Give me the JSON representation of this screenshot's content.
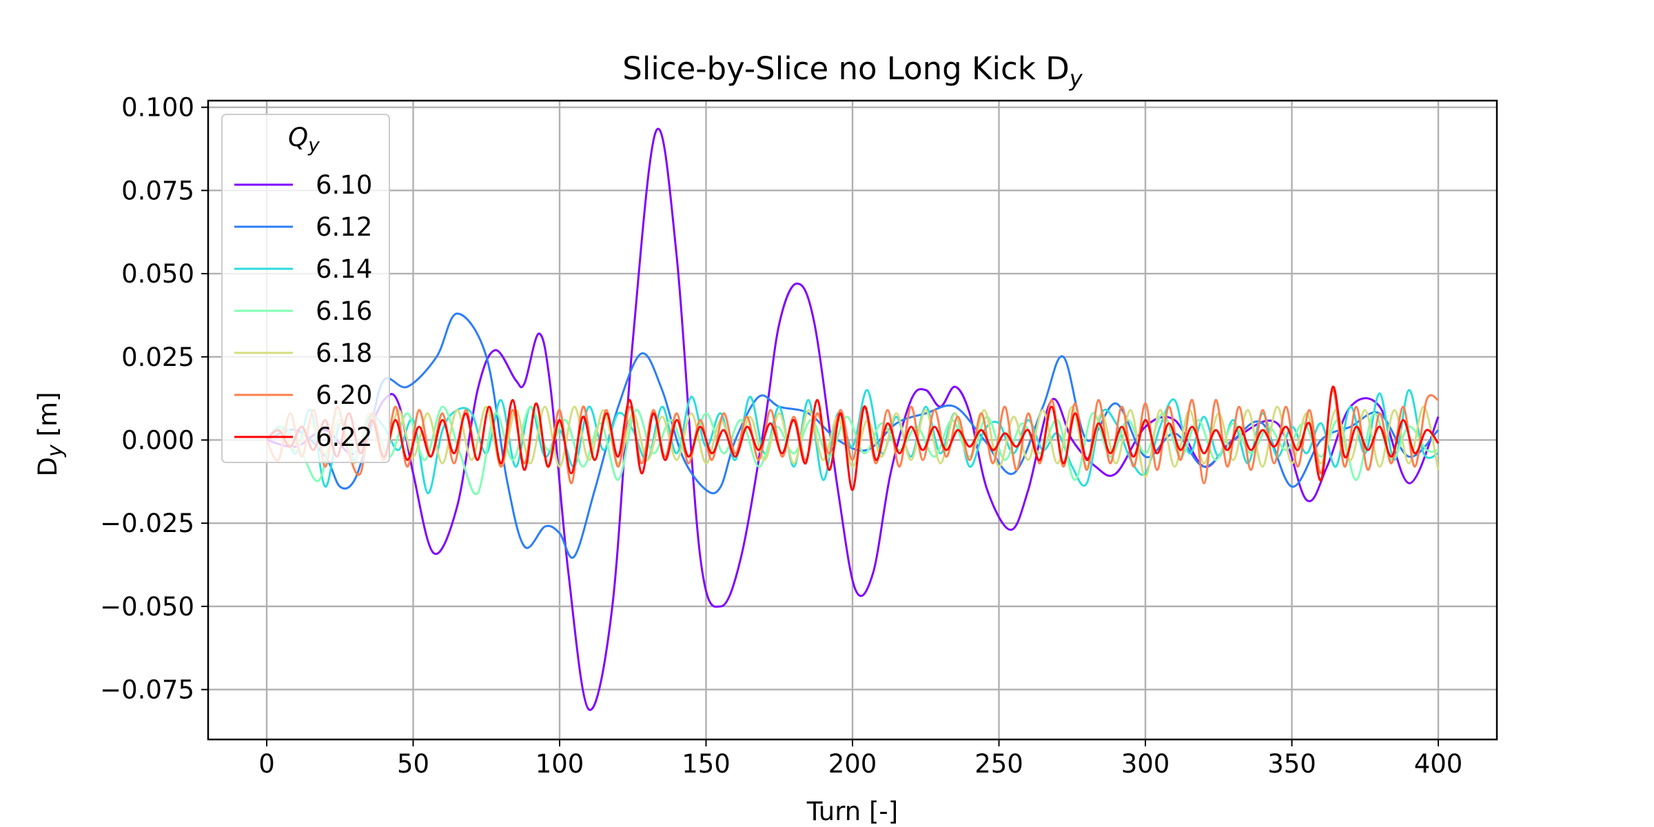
{
  "chart_data": {
    "type": "line",
    "title": "Slice-by-Slice no Long Kick D",
    "title_sub": "y",
    "xlabel": "Turn [-]",
    "ylabel": "D",
    "ylabel_sub": "y",
    "ylabel_unit": " [m]",
    "xlim": [
      -20,
      420
    ],
    "ylim": [
      -0.09,
      0.102
    ],
    "xticks": [
      0,
      50,
      100,
      150,
      200,
      250,
      300,
      350,
      400
    ],
    "xtick_labels": [
      "0",
      "50",
      "100",
      "150",
      "200",
      "250",
      "300",
      "350",
      "400"
    ],
    "yticks": [
      -0.075,
      -0.05,
      -0.025,
      0.0,
      0.025,
      0.05,
      0.075,
      0.1
    ],
    "ytick_labels": [
      "−0.075",
      "−0.050",
      "−0.025",
      "0.000",
      "0.025",
      "0.050",
      "0.075",
      "0.100"
    ],
    "grid": true,
    "legend": {
      "title": "Q",
      "title_sub": "y",
      "placement": "upper-left"
    },
    "series": [
      {
        "name": "6.10",
        "color": "#8000ff",
        "x": [
          0,
          10,
          20,
          30,
          40,
          45,
          50,
          57,
          65,
          72,
          78,
          85,
          88,
          93,
          97,
          103,
          110,
          118,
          125,
          133,
          140,
          148,
          155,
          162,
          170,
          175,
          181,
          187,
          195,
          201,
          207,
          213,
          220,
          225,
          230,
          235,
          240,
          246,
          254,
          260,
          268,
          275,
          283,
          290,
          300,
          310,
          320,
          330,
          345,
          355,
          362,
          370,
          380,
          390,
          400
        ],
        "y": [
          0.0,
          -0.002,
          0.003,
          -0.004,
          0.012,
          0.011,
          -0.01,
          -0.034,
          -0.02,
          0.015,
          0.027,
          0.018,
          0.017,
          0.032,
          0.015,
          -0.04,
          -0.081,
          -0.05,
          0.03,
          0.093,
          0.055,
          -0.035,
          -0.05,
          -0.035,
          0.005,
          0.035,
          0.047,
          0.035,
          -0.015,
          -0.045,
          -0.04,
          -0.01,
          0.012,
          0.015,
          0.01,
          0.016,
          0.008,
          -0.015,
          -0.027,
          -0.015,
          0.012,
          0.0,
          -0.008,
          -0.01,
          0.004,
          0.006,
          -0.008,
          0.0,
          0.005,
          -0.018,
          -0.008,
          0.01,
          0.01,
          -0.013,
          0.007
        ]
      },
      {
        "name": "6.12",
        "color": "#2c7ef7",
        "x": [
          0,
          10,
          20,
          25,
          30,
          35,
          40,
          48,
          58,
          65,
          75,
          82,
          88,
          95,
          100,
          105,
          112,
          120,
          128,
          135,
          142,
          150,
          155,
          160,
          168,
          175,
          185,
          195,
          205,
          215,
          225,
          235,
          245,
          255,
          265,
          272,
          280,
          290,
          300,
          310,
          320,
          330,
          340,
          350,
          360,
          370,
          380,
          390,
          400
        ],
        "y": [
          0.0,
          0.003,
          -0.005,
          -0.014,
          -0.012,
          0.002,
          0.018,
          0.016,
          0.025,
          0.038,
          0.025,
          -0.012,
          -0.032,
          -0.026,
          -0.028,
          -0.035,
          -0.015,
          0.01,
          0.026,
          0.015,
          -0.005,
          -0.015,
          -0.014,
          0.0,
          0.013,
          0.01,
          0.008,
          0.0,
          -0.003,
          0.005,
          0.008,
          0.01,
          0.0,
          -0.01,
          0.01,
          0.025,
          0.0,
          0.011,
          -0.005,
          0.002,
          -0.008,
          0.0,
          0.005,
          -0.014,
          0.0,
          0.004,
          0.008,
          -0.005,
          0.003
        ]
      },
      {
        "name": "6.14",
        "color": "#2adddd",
        "x": [
          0,
          5,
          10,
          15,
          20,
          25,
          30,
          35,
          40,
          45,
          50,
          55,
          60,
          65,
          70,
          75,
          80,
          85,
          90,
          95,
          100,
          105,
          110,
          115,
          120,
          125,
          130,
          135,
          140,
          145,
          150,
          155,
          160,
          165,
          170,
          175,
          180,
          185,
          190,
          195,
          200,
          205,
          210,
          215,
          220,
          225,
          230,
          235,
          240,
          245,
          250,
          255,
          260,
          265,
          270,
          275,
          280,
          285,
          290,
          295,
          300,
          305,
          310,
          315,
          320,
          325,
          330,
          335,
          340,
          345,
          350,
          355,
          360,
          365,
          370,
          375,
          380,
          385,
          390,
          395,
          400
        ],
        "y": [
          0.0,
          0.004,
          -0.004,
          0.009,
          -0.014,
          0.005,
          -0.006,
          0.007,
          0.004,
          -0.003,
          0.006,
          -0.016,
          0.003,
          0.009,
          0.008,
          -0.004,
          0.012,
          -0.008,
          0.01,
          -0.005,
          0.003,
          -0.008,
          0.01,
          -0.003,
          0.008,
          0.003,
          -0.006,
          0.01,
          -0.004,
          0.013,
          -0.002,
          0.008,
          -0.006,
          0.013,
          -0.004,
          0.01,
          -0.008,
          0.012,
          -0.012,
          0.008,
          -0.002,
          0.015,
          -0.004,
          0.007,
          -0.005,
          0.01,
          -0.004,
          0.008,
          -0.008,
          0.003,
          0.005,
          -0.004,
          0.006,
          -0.003,
          0.002,
          -0.008,
          -0.013,
          0.008,
          0.005,
          -0.006,
          -0.01,
          0.004,
          0.012,
          -0.004,
          0.007,
          -0.005,
          0.006,
          -0.007,
          0.008,
          -0.005,
          0.004,
          -0.004,
          0.005,
          -0.008,
          0.01,
          -0.004,
          0.014,
          -0.006,
          0.015,
          -0.004,
          -0.004
        ]
      },
      {
        "name": "6.16",
        "color": "#80ffb4",
        "x": [
          0,
          6,
          12,
          18,
          24,
          30,
          36,
          42,
          48,
          54,
          60,
          66,
          72,
          78,
          84,
          90,
          96,
          102,
          108,
          114,
          120,
          126,
          132,
          138,
          144,
          150,
          156,
          162,
          168,
          174,
          180,
          186,
          192,
          198,
          204,
          210,
          216,
          222,
          228,
          234,
          240,
          246,
          252,
          258,
          264,
          270,
          276,
          282,
          288,
          294,
          300,
          306,
          312,
          318,
          324,
          330,
          336,
          342,
          348,
          354,
          360,
          366,
          372,
          378,
          384,
          390,
          396,
          400
        ],
        "y": [
          0.0,
          0.004,
          -0.004,
          -0.012,
          0.008,
          -0.004,
          0.006,
          -0.005,
          0.008,
          -0.006,
          0.01,
          -0.004,
          -0.016,
          0.008,
          -0.006,
          0.01,
          -0.003,
          0.006,
          -0.008,
          0.005,
          -0.012,
          0.009,
          -0.004,
          0.006,
          -0.005,
          0.008,
          -0.004,
          0.006,
          -0.008,
          0.004,
          -0.004,
          0.006,
          -0.005,
          0.007,
          -0.004,
          0.005,
          -0.003,
          0.004,
          -0.005,
          0.006,
          -0.005,
          0.007,
          -0.006,
          0.005,
          -0.004,
          0.006,
          -0.012,
          0.008,
          -0.005,
          0.006,
          -0.004,
          0.008,
          -0.005,
          0.006,
          -0.006,
          0.005,
          -0.004,
          0.004,
          -0.003,
          0.005,
          -0.005,
          0.006,
          -0.012,
          0.008,
          -0.006,
          0.004,
          -0.003,
          -0.003
        ]
      },
      {
        "name": "6.18",
        "color": "#d4dd80",
        "x": [
          0,
          5,
          10,
          15,
          20,
          25,
          30,
          35,
          40,
          45,
          50,
          55,
          60,
          65,
          70,
          75,
          80,
          85,
          90,
          95,
          100,
          105,
          110,
          115,
          120,
          125,
          130,
          135,
          140,
          145,
          150,
          155,
          160,
          165,
          170,
          175,
          180,
          185,
          190,
          195,
          200,
          205,
          210,
          215,
          220,
          225,
          230,
          235,
          240,
          245,
          250,
          255,
          260,
          265,
          270,
          275,
          280,
          285,
          290,
          295,
          300,
          305,
          310,
          315,
          320,
          325,
          330,
          335,
          340,
          345,
          350,
          355,
          360,
          365,
          370,
          375,
          380,
          385,
          390,
          395,
          400
        ],
        "y": [
          0.0,
          0.003,
          -0.003,
          0.005,
          -0.004,
          0.006,
          -0.007,
          0.008,
          -0.006,
          0.009,
          -0.005,
          0.008,
          -0.007,
          0.009,
          -0.006,
          0.01,
          -0.008,
          0.009,
          -0.007,
          0.01,
          -0.008,
          0.01,
          -0.006,
          0.009,
          -0.007,
          0.008,
          -0.006,
          0.007,
          -0.006,
          0.008,
          -0.007,
          0.006,
          -0.005,
          0.007,
          -0.006,
          0.008,
          -0.007,
          0.009,
          -0.006,
          0.007,
          -0.008,
          0.006,
          -0.005,
          0.008,
          -0.006,
          0.009,
          -0.007,
          0.008,
          -0.006,
          0.009,
          -0.008,
          0.007,
          -0.006,
          0.009,
          -0.007,
          0.01,
          -0.008,
          0.008,
          -0.007,
          0.009,
          -0.011,
          0.009,
          -0.008,
          0.009,
          -0.007,
          0.008,
          -0.006,
          0.009,
          -0.008,
          0.01,
          -0.007,
          0.008,
          -0.007,
          0.009,
          -0.006,
          0.009,
          -0.008,
          0.009,
          -0.007,
          0.01,
          -0.009
        ]
      },
      {
        "name": "6.20",
        "color": "#ff7f4e",
        "x": [
          0,
          4,
          8,
          12,
          16,
          20,
          24,
          28,
          32,
          36,
          40,
          44,
          48,
          52,
          56,
          60,
          64,
          68,
          72,
          76,
          80,
          84,
          88,
          92,
          96,
          100,
          104,
          108,
          112,
          116,
          120,
          124,
          128,
          132,
          136,
          140,
          144,
          148,
          152,
          156,
          160,
          164,
          168,
          172,
          176,
          180,
          184,
          188,
          192,
          196,
          200,
          204,
          208,
          212,
          216,
          220,
          224,
          228,
          232,
          236,
          240,
          244,
          248,
          252,
          256,
          260,
          264,
          268,
          272,
          276,
          280,
          284,
          288,
          292,
          296,
          300,
          304,
          308,
          312,
          316,
          320,
          324,
          328,
          332,
          336,
          340,
          344,
          348,
          352,
          356,
          360,
          364,
          368,
          372,
          376,
          380,
          384,
          388,
          392,
          396,
          400
        ],
        "y": [
          0.0,
          -0.006,
          0.008,
          -0.005,
          0.009,
          -0.008,
          0.01,
          -0.004,
          -0.01,
          0.008,
          -0.006,
          0.01,
          -0.008,
          0.009,
          -0.005,
          0.008,
          -0.007,
          0.009,
          -0.006,
          0.01,
          -0.008,
          0.009,
          -0.007,
          0.011,
          -0.008,
          0.009,
          -0.013,
          0.01,
          -0.006,
          0.009,
          -0.008,
          0.01,
          -0.007,
          0.009,
          -0.005,
          0.008,
          -0.007,
          0.006,
          -0.006,
          0.008,
          -0.004,
          0.007,
          -0.006,
          0.009,
          -0.005,
          0.007,
          -0.006,
          0.008,
          -0.004,
          0.009,
          -0.006,
          0.01,
          -0.007,
          0.009,
          -0.008,
          0.01,
          -0.006,
          0.009,
          -0.005,
          0.007,
          -0.006,
          0.008,
          -0.007,
          0.01,
          -0.009,
          0.008,
          -0.007,
          0.012,
          -0.008,
          0.011,
          -0.009,
          0.012,
          -0.007,
          0.01,
          -0.008,
          0.011,
          -0.009,
          0.01,
          -0.006,
          0.012,
          -0.013,
          0.012,
          -0.008,
          0.01,
          -0.009,
          0.009,
          -0.007,
          0.01,
          -0.008,
          0.009,
          -0.01,
          0.015,
          -0.008,
          0.01,
          -0.009,
          0.008,
          -0.007,
          0.01,
          -0.008,
          0.012,
          0.012
        ]
      },
      {
        "name": "6.22",
        "color": "#ff0000",
        "x": [
          0,
          4,
          8,
          12,
          16,
          20,
          24,
          28,
          32,
          36,
          40,
          44,
          48,
          52,
          56,
          60,
          64,
          68,
          72,
          76,
          80,
          84,
          88,
          92,
          96,
          100,
          104,
          108,
          112,
          116,
          120,
          124,
          128,
          132,
          136,
          140,
          144,
          148,
          152,
          156,
          160,
          164,
          168,
          172,
          176,
          180,
          184,
          188,
          192,
          196,
          200,
          204,
          208,
          212,
          216,
          220,
          224,
          228,
          232,
          236,
          240,
          244,
          248,
          252,
          256,
          260,
          264,
          268,
          272,
          276,
          280,
          284,
          288,
          292,
          296,
          300,
          304,
          308,
          312,
          316,
          320,
          324,
          328,
          332,
          336,
          340,
          344,
          348,
          352,
          356,
          360,
          364,
          368,
          372,
          376,
          380,
          384,
          388,
          392,
          396,
          400
        ],
        "y": [
          0.0,
          0.003,
          -0.002,
          0.004,
          -0.003,
          0.006,
          -0.005,
          0.008,
          -0.004,
          0.006,
          -0.005,
          0.006,
          -0.006,
          0.004,
          -0.005,
          0.006,
          -0.004,
          0.008,
          -0.006,
          0.01,
          -0.007,
          0.012,
          -0.009,
          0.011,
          -0.008,
          0.006,
          -0.01,
          0.007,
          -0.006,
          0.008,
          -0.005,
          0.012,
          -0.01,
          0.008,
          -0.006,
          0.006,
          -0.005,
          0.004,
          -0.004,
          0.003,
          -0.005,
          0.004,
          -0.003,
          0.005,
          -0.004,
          0.006,
          -0.007,
          0.012,
          -0.009,
          0.008,
          -0.015,
          0.01,
          -0.006,
          0.005,
          -0.004,
          0.004,
          -0.003,
          0.004,
          -0.003,
          0.003,
          -0.002,
          0.003,
          -0.003,
          0.002,
          -0.002,
          0.003,
          -0.006,
          0.01,
          -0.007,
          0.008,
          -0.006,
          0.005,
          -0.004,
          0.004,
          -0.005,
          0.006,
          -0.004,
          0.005,
          -0.003,
          0.004,
          -0.004,
          0.003,
          -0.003,
          0.004,
          -0.003,
          0.003,
          -0.002,
          0.004,
          -0.003,
          0.005,
          -0.012,
          0.016,
          -0.005,
          0.004,
          -0.003,
          0.004,
          -0.005,
          0.006,
          -0.004,
          0.003,
          -0.001
        ]
      }
    ]
  }
}
